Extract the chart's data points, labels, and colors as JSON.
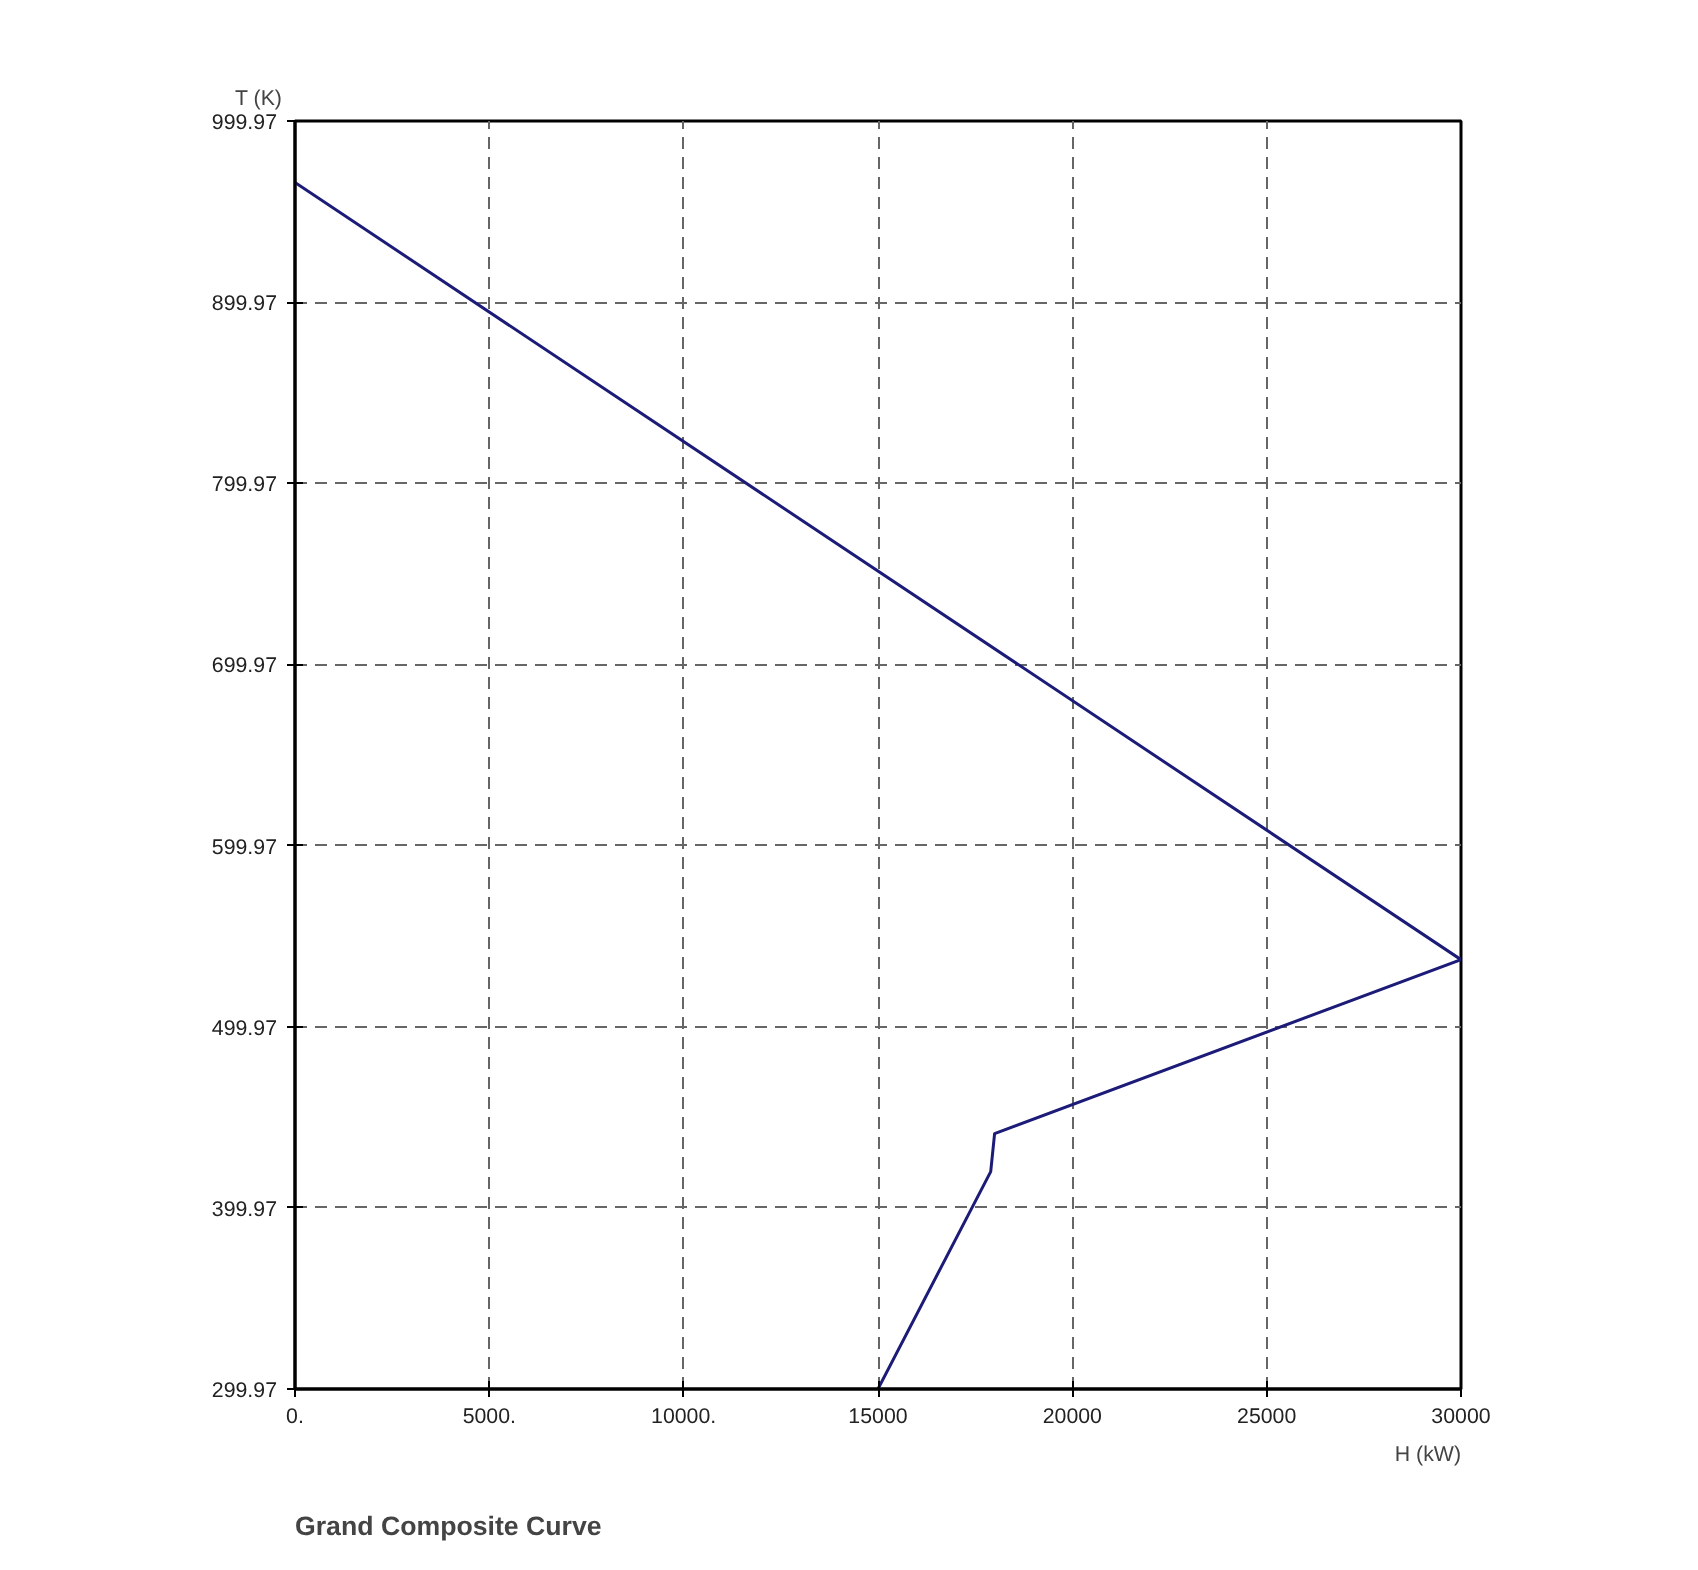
{
  "chart_data": {
    "type": "line",
    "title": "Grand Composite Curve",
    "xlabel": "H (kW)",
    "ylabel": "T (K)",
    "x": [
      0,
      30000,
      18000,
      17900,
      15000
    ],
    "series": [
      {
        "color": "#1c1c78",
        "values": [
          966,
          537,
          441,
          420,
          300
        ]
      }
    ],
    "xlim": [
      0,
      30000
    ],
    "ylim": [
      299.97,
      999.97
    ],
    "xticks": [
      {
        "value": 0,
        "label": "0."
      },
      {
        "value": 5000,
        "label": "5000."
      },
      {
        "value": 10000,
        "label": "10000."
      },
      15000,
      20000,
      25000,
      30000
    ],
    "yticks": [
      299.97,
      399.97,
      499.97,
      599.97,
      699.97,
      799.97,
      899.97,
      999.97
    ],
    "grid": true,
    "marker": "none",
    "line_style": "solid"
  }
}
